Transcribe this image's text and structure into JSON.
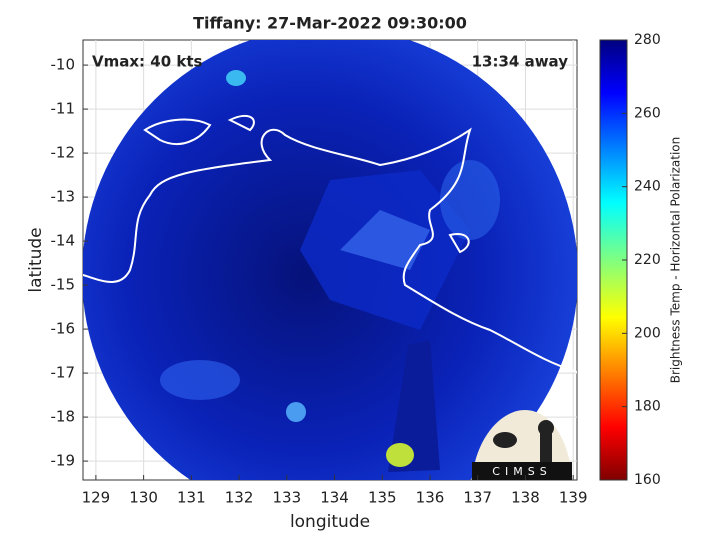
{
  "map": {
    "title": "Tiffany: 27-Mar-2022 09:30:00",
    "annotations": [
      "Vmax: 40 kts",
      "13:34 away"
    ],
    "xlabel": "longitude",
    "ylabel": "latitude",
    "xlim": [
      128.73,
      139.08
    ],
    "ylim": [
      -19.43,
      -9.43
    ],
    "xticks": [
      129,
      130,
      131,
      132,
      133,
      134,
      135,
      136,
      137,
      138,
      139
    ],
    "yticks": [
      -10,
      -11,
      -12,
      -13,
      -14,
      -15,
      -16,
      -17,
      -18,
      -19
    ],
    "grid": true,
    "colorbar": {
      "label": "Brightness Temp - Horizontal Polarization",
      "lim": [
        160,
        280
      ],
      "ticks": [
        160,
        180,
        200,
        220,
        240,
        260,
        280
      ]
    },
    "logo_text": "CIMSS"
  }
}
